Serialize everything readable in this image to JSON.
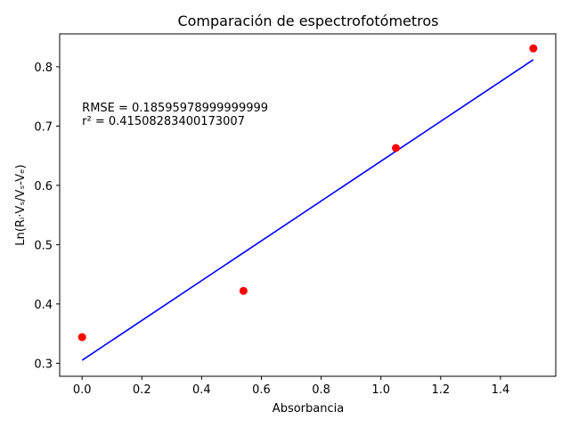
{
  "chart_data": {
    "type": "scatter",
    "title": "Comparación de espectrofotómetros",
    "xlabel": "Absorbancia",
    "ylabel": "Ln(Rᵢ·Vₛ/Vₛ-Vₑ)",
    "xlim": [
      -0.075,
      1.585
    ],
    "ylim": [
      0.278,
      0.8555
    ],
    "xticks": [
      0.0,
      0.2,
      0.4,
      0.6,
      0.8,
      1.0,
      1.2,
      1.4
    ],
    "xtick_labels": [
      "0.0",
      "0.2",
      "0.4",
      "0.6",
      "0.8",
      "1.0",
      "1.2",
      "1.4"
    ],
    "yticks": [
      0.3,
      0.4,
      0.5,
      0.6,
      0.7,
      0.8
    ],
    "ytick_labels": [
      "0.3",
      "0.4",
      "0.5",
      "0.6",
      "0.7",
      "0.8"
    ],
    "grid": false,
    "series": [
      {
        "kind": "scatter",
        "color": "#ff0000",
        "x": [
          0.0,
          0.54,
          1.05,
          1.51
        ],
        "y": [
          0.344,
          0.422,
          0.663,
          0.831
        ]
      },
      {
        "kind": "line",
        "color": "#0000ff",
        "x": [
          0.0,
          1.51
        ],
        "y": [
          0.305,
          0.812
        ]
      }
    ],
    "annotations": [
      {
        "text": "RMSE = 0.18595978999999999",
        "x": 0.0,
        "y": 0.7248
      },
      {
        "text": "r² = 0.41508283400173007",
        "x": 0.0,
        "y": 0.7021
      }
    ]
  }
}
